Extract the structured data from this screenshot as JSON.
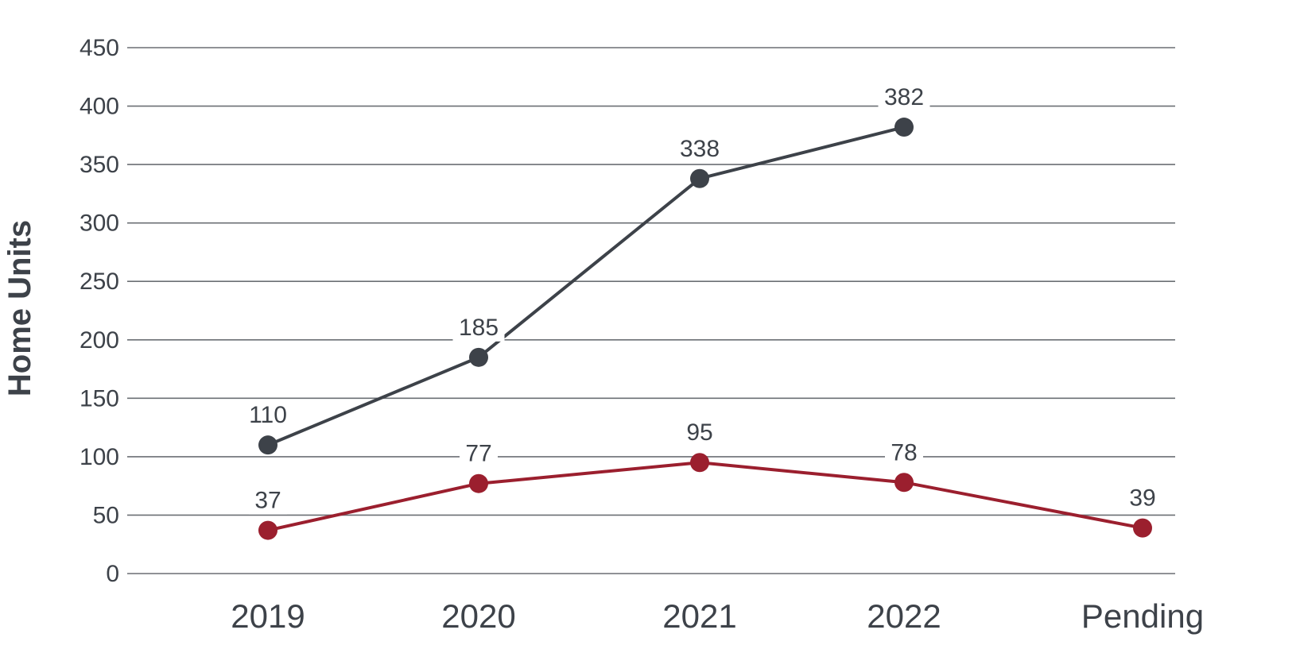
{
  "chart_data": {
    "type": "line",
    "title": "",
    "xlabel": "",
    "ylabel": "Home Units",
    "categories": [
      "2019",
      "2020",
      "2021",
      "2022",
      "Pending"
    ],
    "ylim": [
      0,
      450
    ],
    "yticks": [
      0,
      50,
      100,
      150,
      200,
      250,
      300,
      350,
      400,
      450
    ],
    "grid": true,
    "series": [
      {
        "color": "#3d4249",
        "values": [
          110,
          185,
          338,
          382,
          null
        ]
      },
      {
        "color": "#9b1f2e",
        "values": [
          37,
          77,
          95,
          78,
          39
        ]
      }
    ]
  }
}
